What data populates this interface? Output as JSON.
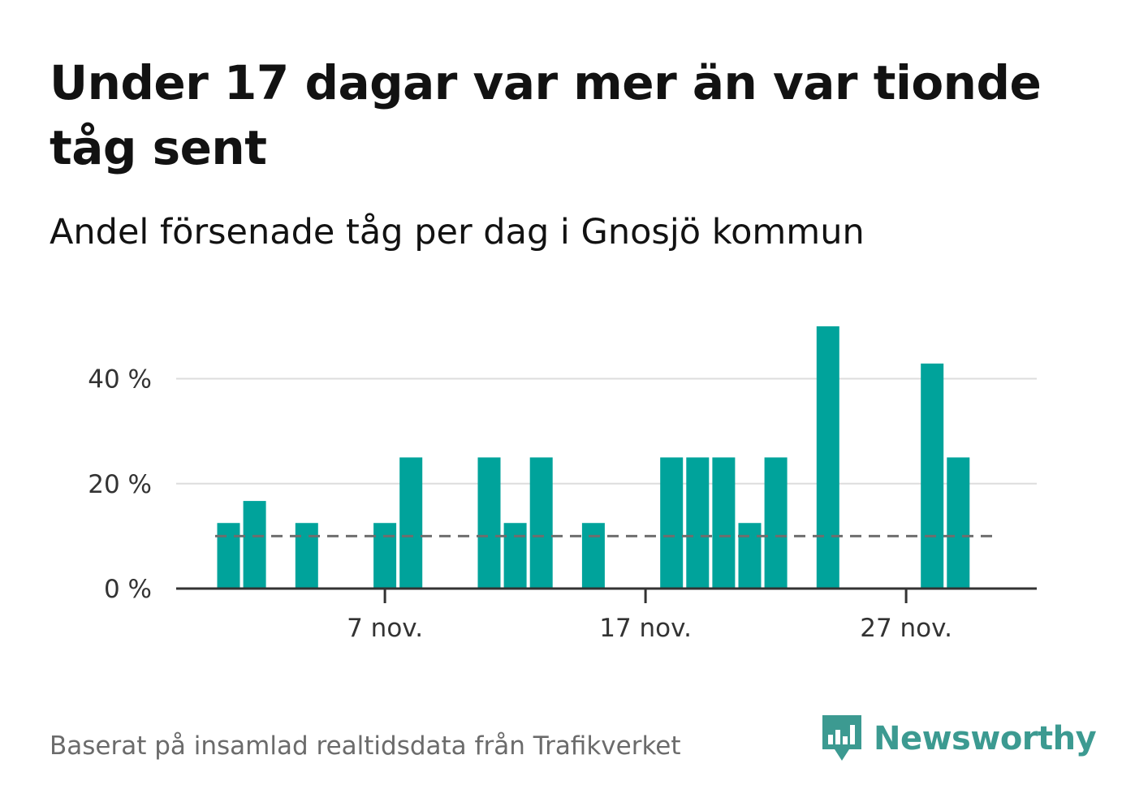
{
  "title": "Under 17 dagar var mer än var tionde tåg sent",
  "subtitle": "Andel försenade tåg per dag i Gnosjö kommun",
  "source": "Baserat på insamlad realtidsdata från Trafikverket",
  "brand": "Newsworthy",
  "colors": {
    "bar": "#00a39b",
    "grid": "#dddddd",
    "axis": "#333333",
    "reference_line": "#6e6e6e",
    "brand": "#3c9a91"
  },
  "chart_data": {
    "type": "bar",
    "x": [
      "2021-11-01",
      "2021-11-02",
      "2021-11-03",
      "2021-11-04",
      "2021-11-05",
      "2021-11-06",
      "2021-11-07",
      "2021-11-08",
      "2021-11-09",
      "2021-11-10",
      "2021-11-11",
      "2021-11-12",
      "2021-11-13",
      "2021-11-14",
      "2021-11-15",
      "2021-11-16",
      "2021-11-17",
      "2021-11-18",
      "2021-11-19",
      "2021-11-20",
      "2021-11-21",
      "2021-11-22",
      "2021-11-23",
      "2021-11-24",
      "2021-11-25",
      "2021-11-26",
      "2021-11-27",
      "2021-11-28",
      "2021-11-29",
      "2021-11-30"
    ],
    "values": [
      12.5,
      16.7,
      0,
      12.5,
      0,
      0,
      12.5,
      25,
      0,
      0,
      25,
      12.5,
      25,
      0,
      12.5,
      0,
      0,
      25,
      25,
      25,
      12.5,
      25,
      0,
      50,
      0,
      0,
      0,
      42.9,
      25,
      0
    ],
    "ylim": [
      0,
      52
    ],
    "yticks": [
      0,
      20,
      40
    ],
    "ytick_labels": [
      "0 %",
      "20 %",
      "40 %"
    ],
    "xticks": [
      "2021-11-07",
      "2021-11-17",
      "2021-11-27"
    ],
    "xtick_labels": [
      "7 nov.",
      "17 nov.",
      "27 nov."
    ],
    "reference_line": 10,
    "xlabel": "",
    "ylabel": "",
    "grid": true
  }
}
